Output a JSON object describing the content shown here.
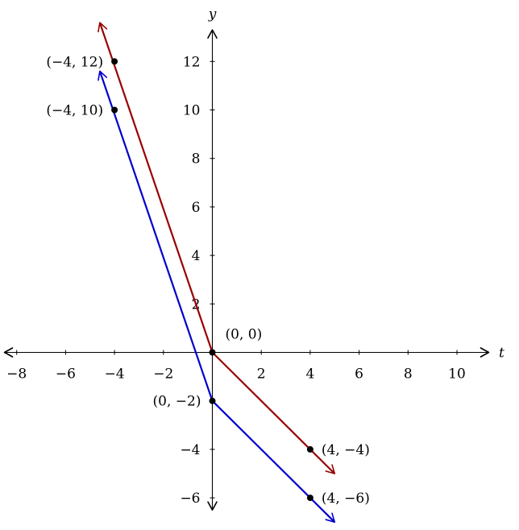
{
  "chart_data": {
    "type": "line",
    "xlabel": "t",
    "ylabel": "y",
    "xlim": [
      -8.5,
      11.3
    ],
    "ylim": [
      -6.5,
      13.3
    ],
    "x_ticks": [
      -8,
      -6,
      -4,
      -2,
      2,
      4,
      6,
      8,
      10
    ],
    "y_ticks": [
      -6,
      -4,
      2,
      4,
      6,
      8,
      10,
      12
    ],
    "x_tick_labels": [
      "−8",
      "−6",
      "−4",
      "−2",
      "2",
      "4",
      "6",
      "8",
      "10"
    ],
    "y_tick_labels": [
      "−6",
      "−4",
      "2",
      "4",
      "6",
      "8",
      "10",
      "12"
    ],
    "grid": false,
    "series": [
      {
        "color": "#990000",
        "points": [
          [
            -4.6,
            13.6
          ],
          [
            0,
            0
          ],
          [
            5,
            -5
          ]
        ]
      },
      {
        "color": "#0000cc",
        "points": [
          [
            -4.6,
            11.6
          ],
          [
            0,
            -2
          ],
          [
            5,
            -7
          ]
        ]
      }
    ],
    "points": [
      {
        "x": -4,
        "y": 12,
        "label": "(−4, 12)",
        "anchor": "left"
      },
      {
        "x": -4,
        "y": 10,
        "label": "(−4, 10)",
        "anchor": "left"
      },
      {
        "x": 0,
        "y": 0,
        "label": "(0, 0)",
        "anchor": "above-right"
      },
      {
        "x": 0,
        "y": -2,
        "label": "(0, −2)",
        "anchor": "left"
      },
      {
        "x": 4,
        "y": -4,
        "label": "(4, −4)",
        "anchor": "right"
      },
      {
        "x": 4,
        "y": -6,
        "label": "(4, −6)",
        "anchor": "right"
      }
    ]
  }
}
